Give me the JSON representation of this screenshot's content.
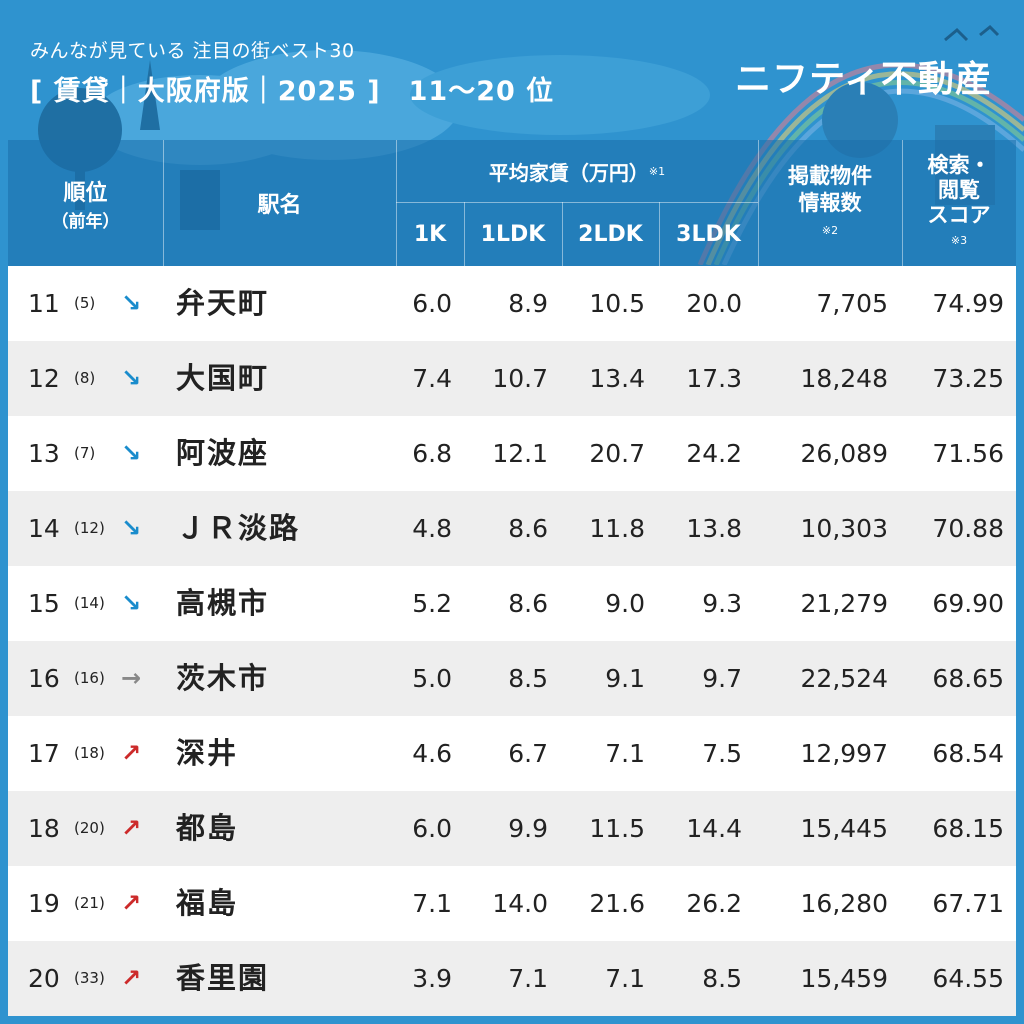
{
  "header": {
    "subtitle": "みんなが見ている 注目の街ベスト30",
    "title": "[ 賃貸｜大阪府版｜2025 ]　11〜20 位",
    "logo": "ニフティ不動産"
  },
  "columns": {
    "rank": "順位",
    "rank_sub": "（前年）",
    "station": "駅名",
    "rent": "平均家賃（万円）",
    "rent_note": "※1",
    "k1": "1K",
    "ldk1": "1LDK",
    "ldk2": "2LDK",
    "ldk3": "3LDK",
    "listings_l1": "掲載物件",
    "listings_l2": "情報数",
    "listings_note": "※2",
    "score_l1": "検索・",
    "score_l2": "閲覧",
    "score_l3": "スコア",
    "score_note": "※3"
  },
  "rows": [
    {
      "rank": "11",
      "prev": "(5)",
      "trend": "down",
      "arrow": "↘",
      "name": "弁天町",
      "k1": "6.0",
      "ldk1": "8.9",
      "ldk2": "10.5",
      "ldk3": "20.0",
      "listings": "7,705",
      "score": "74.99"
    },
    {
      "rank": "12",
      "prev": "(8)",
      "trend": "down",
      "arrow": "↘",
      "name": "大国町",
      "k1": "7.4",
      "ldk1": "10.7",
      "ldk2": "13.4",
      "ldk3": "17.3",
      "listings": "18,248",
      "score": "73.25"
    },
    {
      "rank": "13",
      "prev": "(7)",
      "trend": "down",
      "arrow": "↘",
      "name": "阿波座",
      "k1": "6.8",
      "ldk1": "12.1",
      "ldk2": "20.7",
      "ldk3": "24.2",
      "listings": "26,089",
      "score": "71.56"
    },
    {
      "rank": "14",
      "prev": "(12)",
      "trend": "down",
      "arrow": "↘",
      "name": "ＪＲ淡路",
      "k1": "4.8",
      "ldk1": "8.6",
      "ldk2": "11.8",
      "ldk3": "13.8",
      "listings": "10,303",
      "score": "70.88"
    },
    {
      "rank": "15",
      "prev": "(14)",
      "trend": "down",
      "arrow": "↘",
      "name": "高槻市",
      "k1": "5.2",
      "ldk1": "8.6",
      "ldk2": "9.0",
      "ldk3": "9.3",
      "listings": "21,279",
      "score": "69.90"
    },
    {
      "rank": "16",
      "prev": "(16)",
      "trend": "same",
      "arrow": "→",
      "name": "茨木市",
      "k1": "5.0",
      "ldk1": "8.5",
      "ldk2": "9.1",
      "ldk3": "9.7",
      "listings": "22,524",
      "score": "68.65"
    },
    {
      "rank": "17",
      "prev": "(18)",
      "trend": "up",
      "arrow": "↗",
      "name": "深井",
      "k1": "4.6",
      "ldk1": "6.7",
      "ldk2": "7.1",
      "ldk3": "7.5",
      "listings": "12,997",
      "score": "68.54"
    },
    {
      "rank": "18",
      "prev": "(20)",
      "trend": "up",
      "arrow": "↗",
      "name": "都島",
      "k1": "6.0",
      "ldk1": "9.9",
      "ldk2": "11.5",
      "ldk3": "14.4",
      "listings": "15,445",
      "score": "68.15"
    },
    {
      "rank": "19",
      "prev": "(21)",
      "trend": "up",
      "arrow": "↗",
      "name": "福島",
      "k1": "7.1",
      "ldk1": "14.0",
      "ldk2": "21.6",
      "ldk3": "26.2",
      "listings": "16,280",
      "score": "67.71"
    },
    {
      "rank": "20",
      "prev": "(33)",
      "trend": "up",
      "arrow": "↗",
      "name": "香里園",
      "k1": "3.9",
      "ldk1": "7.1",
      "ldk2": "7.1",
      "ldk3": "8.5",
      "listings": "15,459",
      "score": "64.55"
    }
  ]
}
